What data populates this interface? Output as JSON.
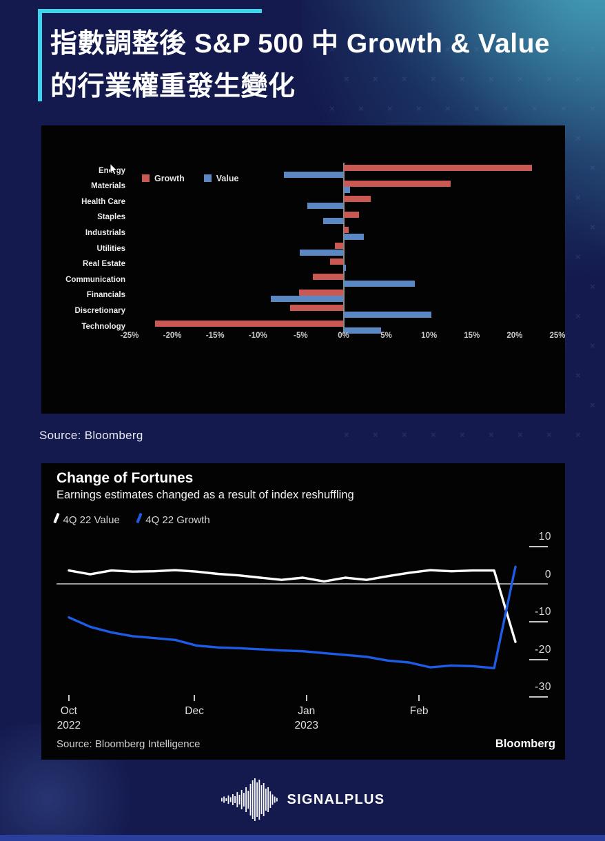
{
  "header": {
    "title_line1": "指數調整後 S&P 500 中 Growth & Value",
    "title_line2": "的行業權重發生變化"
  },
  "source_note": "Source: Bloomberg",
  "chart_data": [
    {
      "type": "bar",
      "orientation": "horizontal",
      "categories": [
        "Energy",
        "Materials",
        "Health Care",
        "Staples",
        "Industrials",
        "Utilities",
        "Real Estate",
        "Communication",
        "Financials",
        "Discretionary",
        "Technology"
      ],
      "series": [
        {
          "name": "Growth",
          "color": "#cb5953",
          "values": [
            22.0,
            12.5,
            3.2,
            1.8,
            0.6,
            -1.0,
            -1.6,
            -3.6,
            -5.2,
            -6.2,
            -22.0
          ]
        },
        {
          "name": "Value",
          "color": "#5b87c3",
          "values": [
            -7.0,
            0.8,
            -4.2,
            -2.4,
            2.4,
            -5.1,
            0.3,
            8.3,
            -8.5,
            10.3,
            4.4
          ]
        }
      ],
      "xlim": [
        -25,
        25
      ],
      "x_tick_labels": [
        "-25%",
        "-20%",
        "-15%",
        "-10%",
        "-5%",
        "0%",
        "5%",
        "10%",
        "15%",
        "20%",
        "25%"
      ],
      "unit": "%",
      "grid": false,
      "legend_position": "inside-top-left"
    },
    {
      "type": "line",
      "title": "Change of Fortunes",
      "subtitle": "Earnings estimates changed as a result of index reshuffling",
      "series": [
        {
          "name": "4Q 22 Value",
          "color": "#ffffff",
          "values": [
            3.5,
            2.5,
            3.5,
            3.2,
            3.3,
            3.6,
            3.2,
            2.6,
            2.2,
            1.6,
            1.0,
            1.6,
            0.6,
            1.6,
            1.0,
            2.0,
            2.9,
            3.6,
            3.3,
            3.5,
            3.5,
            -15.5
          ]
        },
        {
          "name": "4Q 22 Growth",
          "color": "#1d5ce6",
          "values": [
            -9.0,
            -11.5,
            -13.0,
            -14.0,
            -14.5,
            -15.0,
            -16.5,
            -17.0,
            -17.2,
            -17.5,
            -17.8,
            -18.0,
            -18.5,
            -19.0,
            -19.5,
            -20.5,
            -21.0,
            -22.3,
            -21.8,
            -22.0,
            -22.5,
            4.5
          ]
        }
      ],
      "ylim": [
        -30,
        15
      ],
      "y_ticks": [
        10,
        0,
        -10,
        -20,
        -30
      ],
      "x_ticks": [
        {
          "line1": "Oct",
          "line2": "2022",
          "pos": 0.022
        },
        {
          "line1": "Dec",
          "line2": "",
          "pos": 0.292
        },
        {
          "line1": "Jan",
          "line2": "2023",
          "pos": 0.533
        },
        {
          "line1": "Feb",
          "line2": "",
          "pos": 0.775
        }
      ],
      "zero_line": true,
      "source": "Source: Bloomberg Intelligence",
      "brand": "Bloomberg",
      "legend_position": "top-left"
    }
  ],
  "footer": {
    "brand": "SIGNALPLUS"
  },
  "colors": {
    "background": "#141a4e",
    "accent_cyan": "#3bd6ee",
    "panel_black": "#030303",
    "growth_red": "#cb5953",
    "value_blue": "#5b87c3",
    "line_white": "#ffffff",
    "line_blue": "#1d5ce6",
    "bottom_strip": "#2a3e9b",
    "title_text": "#ffffff"
  }
}
